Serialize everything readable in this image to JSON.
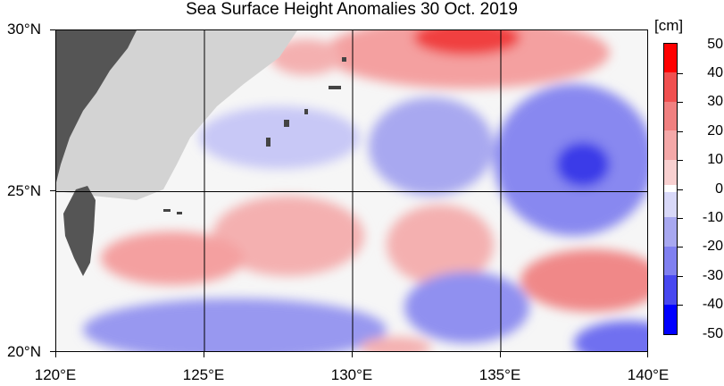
{
  "title": "Sea Surface Height Anomalies  30 Oct. 2019",
  "unit_label": "[cm]",
  "map": {
    "lon_range": [
      120,
      140
    ],
    "lat_range": [
      20,
      30
    ],
    "lat_labels": [
      "30°N",
      "25°N",
      "20°N"
    ],
    "lon_labels": [
      "120°E",
      "125°E",
      "130°E",
      "135°E",
      "140°E"
    ],
    "gridlines": true,
    "land_color": "#555555",
    "no_data_color": "#d3d3d3"
  },
  "colorbar": {
    "labels": [
      "50",
      "40",
      "30",
      "20",
      "10",
      "0",
      "-10",
      "-20",
      "-30",
      "-40",
      "-50"
    ],
    "colors": [
      "#ff0000",
      "#f04040",
      "#f08080",
      "#f8a8a8",
      "#f8c8c8",
      "#ffffff",
      "#d0d0f8",
      "#a8a8f0",
      "#8080f0",
      "#4848f0",
      "#0000ff"
    ]
  }
}
